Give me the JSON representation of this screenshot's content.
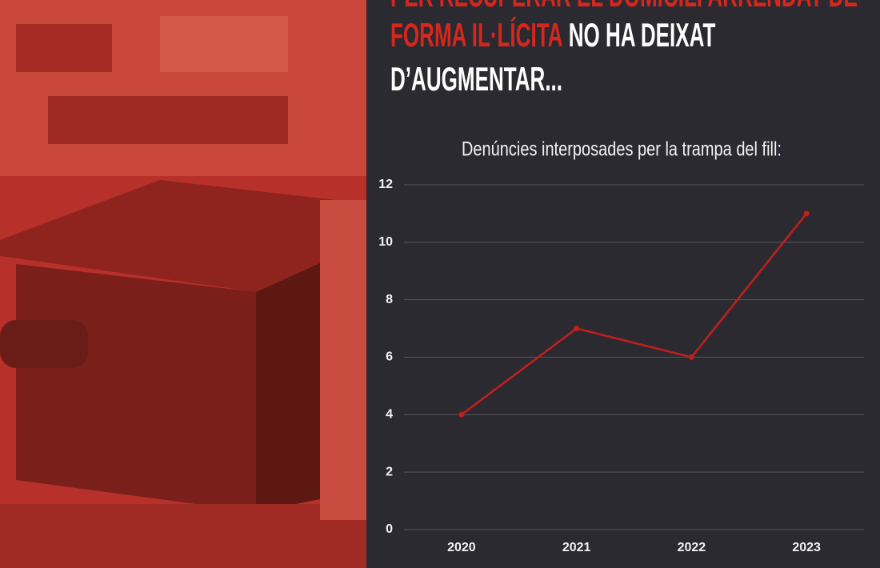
{
  "headline": {
    "lines": [
      [
        {
          "text": "PER RECUPERAR EL DOMICILI ARRENDAT DE",
          "highlight": true
        }
      ],
      [
        {
          "text": "FORMA IL·LÍCITA",
          "highlight": true
        },
        {
          "text": " NO HA DEIXAT",
          "highlight": false
        }
      ],
      [
        {
          "text": "D’AUGMENTAR...",
          "highlight": false
        }
      ]
    ]
  },
  "chart_data": {
    "type": "line",
    "title": "Denúncies interposades per la trampa del fill:",
    "categories": [
      "2020",
      "2021",
      "2022",
      "2023"
    ],
    "values": [
      4,
      7,
      6,
      11
    ],
    "color": "#c21f1d",
    "ylim": [
      0,
      12
    ],
    "yticks": [
      0,
      2,
      4,
      6,
      8,
      10,
      12
    ],
    "grid": true
  }
}
